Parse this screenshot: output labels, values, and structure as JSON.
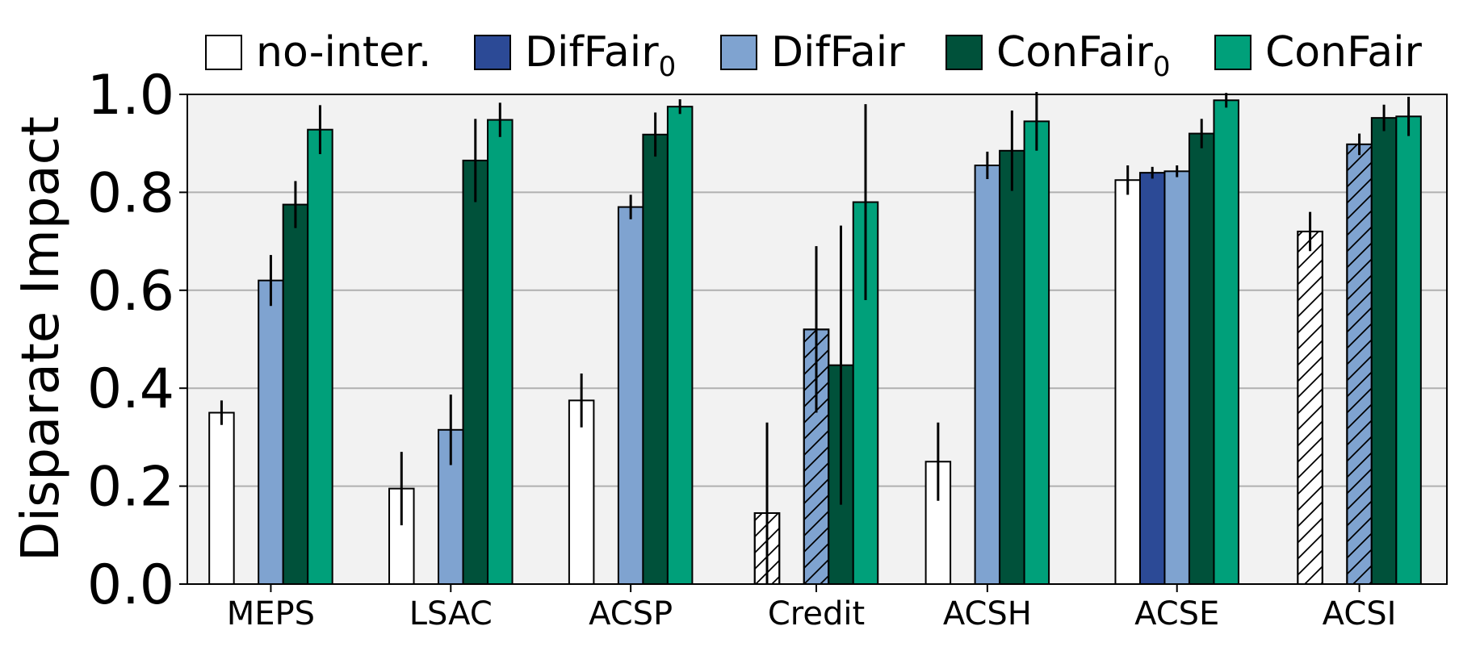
{
  "chart_data": {
    "type": "bar",
    "ylabel": "Disparate Impact",
    "ylim": [
      0.0,
      1.0
    ],
    "yticks": [
      "0.0",
      "0.2",
      "0.4",
      "0.6",
      "0.8",
      "1.0"
    ],
    "grid": "horizontal",
    "legend_position": "top",
    "categories": [
      "MEPS",
      "LSAC",
      "ACSP",
      "Credit",
      "ACSH",
      "ACSE",
      "ACSI"
    ],
    "series": [
      {
        "name": "no-inter.",
        "name_sub": "",
        "color": "#ffffff",
        "values": [
          0.35,
          0.195,
          0.375,
          0.145,
          0.25,
          0.825,
          0.72
        ],
        "errors": [
          0.025,
          0.075,
          0.055,
          0.185,
          0.08,
          0.03,
          0.04
        ],
        "hatched": [
          false,
          false,
          false,
          true,
          false,
          false,
          true
        ]
      },
      {
        "name": "DifFair",
        "name_sub": "0",
        "color": "#2c4a96",
        "values": [
          null,
          null,
          null,
          null,
          null,
          0.84,
          null
        ],
        "errors": [
          null,
          null,
          null,
          null,
          null,
          0.012,
          null
        ],
        "hatched": [
          false,
          false,
          false,
          false,
          false,
          false,
          false
        ]
      },
      {
        "name": "DifFair",
        "name_sub": "",
        "color": "#7fa3d0",
        "values": [
          0.62,
          0.315,
          0.77,
          0.52,
          0.855,
          0.843,
          0.898
        ],
        "errors": [
          0.052,
          0.072,
          0.025,
          0.17,
          0.028,
          0.012,
          0.022
        ],
        "hatched": [
          false,
          false,
          false,
          true,
          false,
          false,
          true
        ]
      },
      {
        "name": "ConFair",
        "name_sub": "0",
        "color": "#00513a",
        "values": [
          0.775,
          0.865,
          0.918,
          0.447,
          0.885,
          0.92,
          0.952
        ],
        "errors": [
          0.048,
          0.085,
          0.045,
          0.285,
          0.082,
          0.03,
          0.027
        ],
        "hatched": [
          false,
          false,
          false,
          false,
          false,
          false,
          false
        ]
      },
      {
        "name": "ConFair",
        "name_sub": "",
        "color": "#00a07a",
        "values": [
          0.928,
          0.948,
          0.975,
          0.78,
          0.945,
          0.988,
          0.955
        ],
        "errors": [
          0.05,
          0.035,
          0.015,
          0.2,
          0.06,
          0.015,
          0.04
        ],
        "hatched": [
          false,
          false,
          false,
          false,
          false,
          false,
          false
        ]
      }
    ]
  }
}
